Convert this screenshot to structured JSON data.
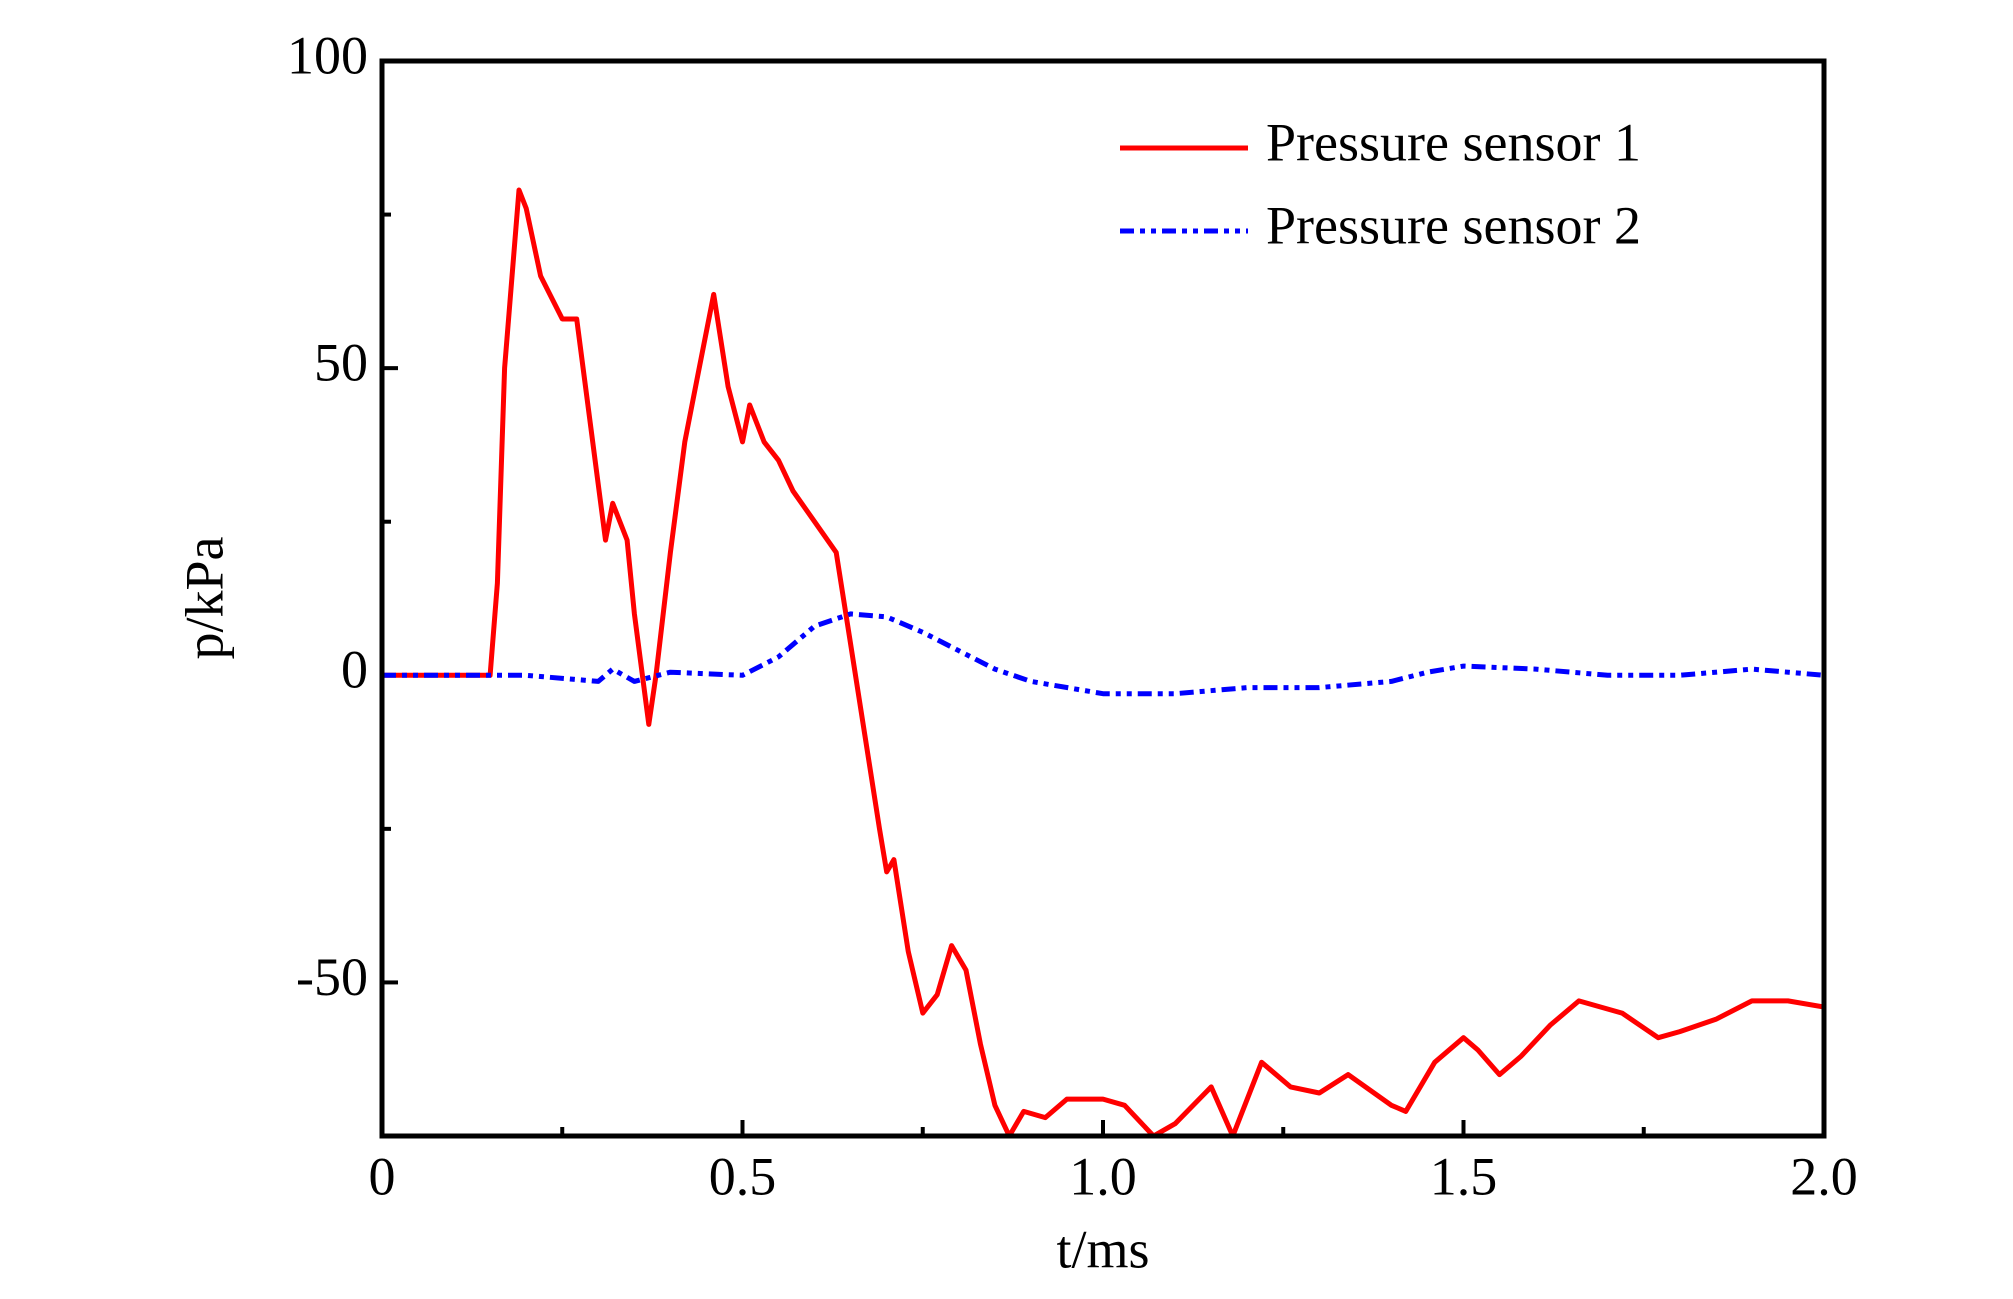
{
  "chart_data": {
    "type": "line",
    "xlabel": "t/ms",
    "ylabel": "p/kPa",
    "xlim": [
      0,
      2.0
    ],
    "xticks": [
      0,
      0.5,
      {
        "value": 1.0,
        "label": "1.0"
      },
      1.5,
      {
        "value": 2.0,
        "label": "2.0"
      }
    ],
    "ylim": [
      -75,
      100
    ],
    "yticks": [
      -50,
      0,
      50,
      100
    ],
    "legend": "upper right",
    "series": [
      {
        "name": "Pressure sensor 1",
        "color": "#ff0000",
        "linestyle": "solid",
        "x": [
          0,
          0.05,
          0.1,
          0.15,
          0.16,
          0.17,
          0.19,
          0.2,
          0.22,
          0.25,
          0.27,
          0.29,
          0.31,
          0.32,
          0.34,
          0.35,
          0.37,
          0.38,
          0.4,
          0.42,
          0.44,
          0.46,
          0.48,
          0.5,
          0.51,
          0.53,
          0.55,
          0.57,
          0.6,
          0.63,
          0.65,
          0.67,
          0.69,
          0.7,
          0.71,
          0.73,
          0.75,
          0.77,
          0.79,
          0.81,
          0.83,
          0.85,
          0.87,
          0.89,
          0.92,
          0.95,
          1.0,
          1.03,
          1.07,
          1.1,
          1.15,
          1.18,
          1.22,
          1.26,
          1.3,
          1.34,
          1.4,
          1.42,
          1.46,
          1.5,
          1.52,
          1.55,
          1.58,
          1.62,
          1.66,
          1.72,
          1.77,
          1.8,
          1.85,
          1.9,
          1.95,
          2.0
        ],
        "values": [
          0,
          0,
          0,
          0,
          15,
          50,
          79,
          76,
          65,
          58,
          58,
          40,
          22,
          28,
          22,
          10,
          -8,
          0,
          20,
          38,
          50,
          62,
          47,
          38,
          44,
          38,
          35,
          30,
          25,
          20,
          5,
          -10,
          -25,
          -32,
          -30,
          -45,
          -55,
          -52,
          -44,
          -48,
          -60,
          -70,
          -75,
          -71,
          -72,
          -69,
          -69,
          -70,
          -75,
          -73,
          -67,
          -75,
          -63,
          -67,
          -68,
          -65,
          -70,
          -71,
          -63,
          -59,
          -61,
          -65,
          -62,
          -57,
          -53,
          -55,
          -59,
          -58,
          -56,
          -53,
          -53,
          -54
        ]
      },
      {
        "name": "Pressure sensor 2",
        "color": "#0000ff",
        "linestyle": "dashdot",
        "x": [
          0,
          0.1,
          0.2,
          0.3,
          0.32,
          0.35,
          0.4,
          0.5,
          0.55,
          0.6,
          0.65,
          0.7,
          0.75,
          0.8,
          0.85,
          0.9,
          1.0,
          1.1,
          1.2,
          1.3,
          1.4,
          1.45,
          1.5,
          1.6,
          1.7,
          1.8,
          1.9,
          2.0
        ],
        "values": [
          0,
          0,
          0,
          -1,
          1,
          -1,
          0.5,
          0,
          3,
          8,
          10,
          9.5,
          7,
          4,
          1,
          -1,
          -3,
          -3,
          -2,
          -2,
          -1,
          0.5,
          1.5,
          1,
          0,
          0,
          1,
          0
        ]
      }
    ]
  }
}
